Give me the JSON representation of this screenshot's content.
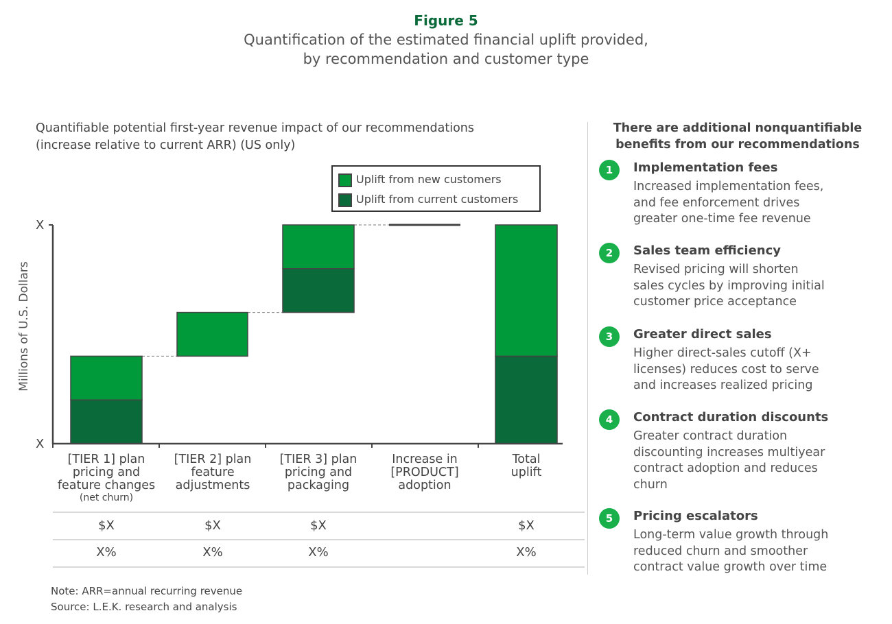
{
  "figure": {
    "number": "Figure 5",
    "title_line1": "Quantification of the estimated financial uplift provided,",
    "title_line2": "by recommendation and customer type"
  },
  "chart_data": {
    "type": "bar",
    "subtype": "stacked-waterfall",
    "title_line1": "Quantifiable potential first-year revenue impact of our recommendations",
    "title_line2": "(increase relative to current ARR) (US only)",
    "ylabel": "Millions of U.S. Dollars",
    "ytick_labels": [
      "X",
      "X"
    ],
    "ylim": [
      0,
      5
    ],
    "grid": false,
    "legend_position": "top-right",
    "categories": [
      {
        "lines": [
          "[TIER 1] plan",
          "pricing and",
          "feature changes"
        ],
        "note": "(net churn)"
      },
      {
        "lines": [
          "[TIER 2] plan",
          "feature",
          "adjustments"
        ],
        "note": ""
      },
      {
        "lines": [
          "[TIER 3] plan",
          "pricing and",
          "packaging"
        ],
        "note": ""
      },
      {
        "lines": [
          "Increase in",
          "[PRODUCT]",
          "adoption"
        ],
        "note": ""
      },
      {
        "lines": [
          "Total",
          "uplift"
        ],
        "note": ""
      }
    ],
    "base": [
      0,
      2,
      3,
      5,
      0
    ],
    "series": [
      {
        "name": "Uplift from current customers",
        "color": "#0b6a3a",
        "values": [
          1,
          0,
          1,
          0,
          2
        ]
      },
      {
        "name": "Uplift from new customers",
        "color": "#009a3a",
        "values": [
          1,
          1,
          1,
          0,
          3
        ]
      }
    ],
    "table": {
      "dollar_row": [
        "$X",
        "$X",
        "$X",
        "",
        "$X"
      ],
      "percent_row": [
        "X%",
        "X%",
        "X%",
        "",
        "X%"
      ]
    },
    "note": "Note: ARR=annual recurring revenue",
    "source": "Source: L.E.K. research and analysis"
  },
  "benefits": {
    "heading_line1": "There are additional nonquantifiable",
    "heading_line2": "benefits from our recommendations",
    "accent": "#19b04b",
    "items": [
      {
        "num": "1",
        "title": "Implementation fees",
        "body": [
          "Increased implementation fees,",
          "and fee enforcement drives",
          "greater one-time fee revenue"
        ]
      },
      {
        "num": "2",
        "title": "Sales team efficiency",
        "body": [
          "Revised pricing will shorten",
          "sales cycles by improving initial",
          "customer price acceptance"
        ]
      },
      {
        "num": "3",
        "title": "Greater direct sales",
        "body": [
          "Higher direct-sales cutoff (X+",
          "licenses) reduces cost to serve",
          "and increases realized pricing"
        ]
      },
      {
        "num": "4",
        "title": "Contract duration discounts",
        "body": [
          "Greater contract duration",
          "discounting increases multiyear",
          "contract adoption and reduces",
          "churn"
        ]
      },
      {
        "num": "5",
        "title": "Pricing escalators",
        "body": [
          "Long-term value growth through",
          "reduced churn and smoother",
          "contract value growth over time"
        ]
      }
    ]
  }
}
